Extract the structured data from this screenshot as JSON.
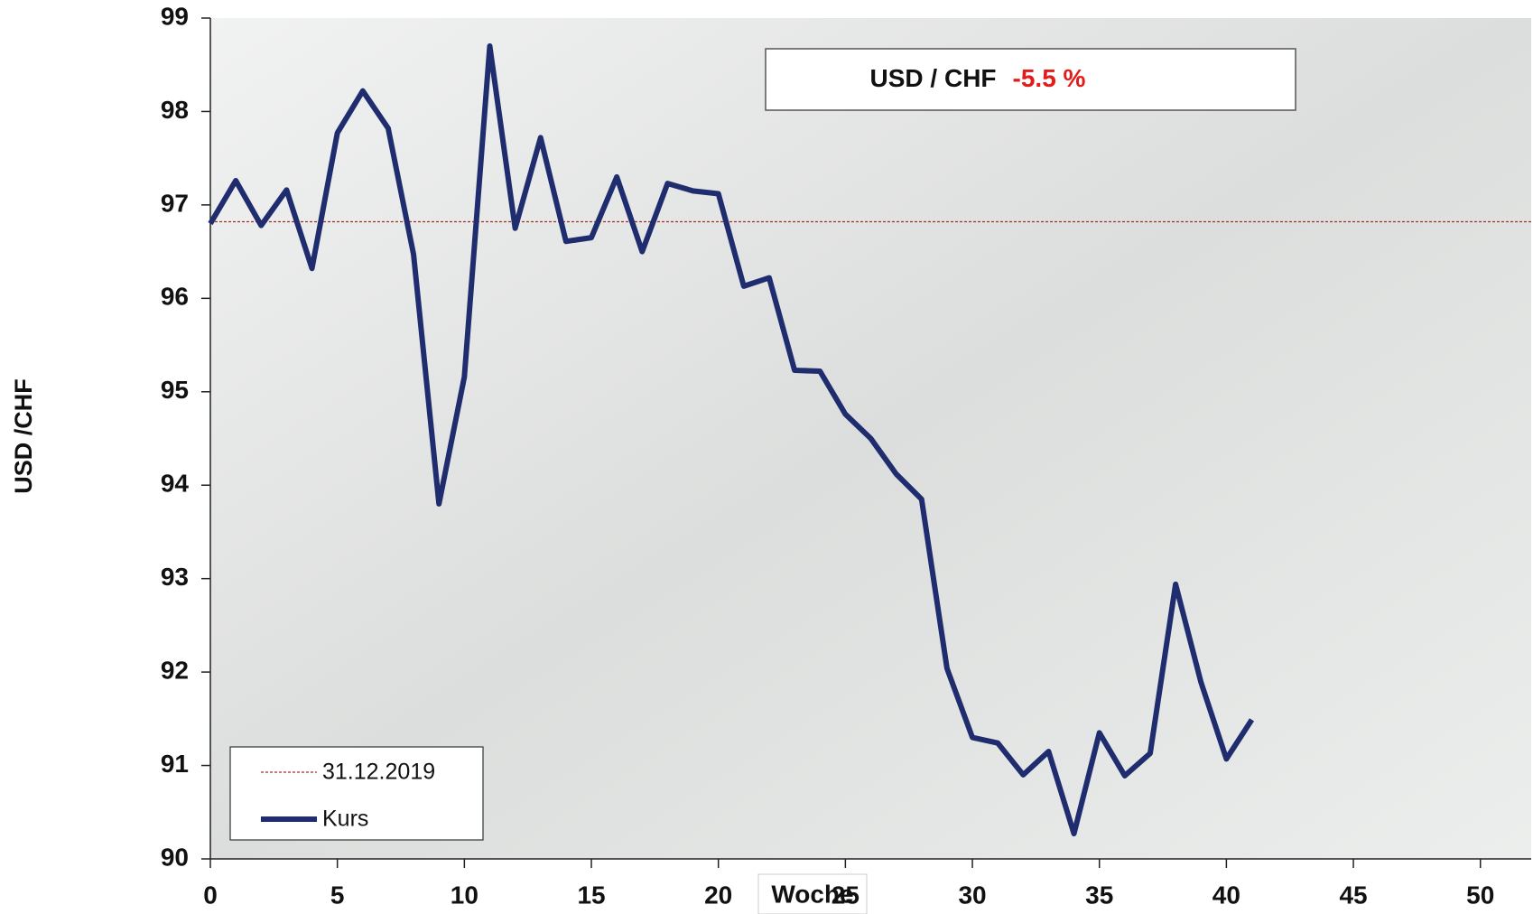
{
  "chart_data": {
    "type": "line",
    "title": "USD / CHF",
    "title_change": "-5.5 %",
    "y_label": "USD /CHF",
    "x_label": "Woche",
    "x": [
      0,
      1,
      2,
      3,
      4,
      5,
      6,
      7,
      8,
      9,
      10,
      11,
      12,
      13,
      14,
      15,
      16,
      17,
      18,
      19,
      20,
      21,
      22,
      23,
      24,
      25,
      26,
      27,
      28,
      29,
      30,
      31,
      32,
      33,
      34,
      35,
      36,
      37,
      38,
      39,
      40,
      41
    ],
    "series": [
      {
        "name": "Kurs",
        "color": "#1f2d6e",
        "values": [
          96.8,
          97.26,
          96.78,
          97.16,
          96.32,
          97.77,
          98.22,
          97.82,
          96.47,
          93.8,
          95.16,
          98.7,
          96.75,
          97.72,
          96.61,
          96.65,
          97.3,
          96.5,
          97.23,
          97.15,
          97.12,
          96.13,
          96.22,
          95.23,
          95.22,
          94.76,
          94.5,
          94.12,
          93.85,
          92.04,
          91.3,
          91.24,
          90.9,
          91.15,
          90.27,
          91.35,
          90.89,
          91.13,
          92.94,
          91.89,
          91.07,
          91.49
        ]
      }
    ],
    "reference_line": {
      "name": "31.12.2019",
      "value": 96.82,
      "color": "#a0302a"
    },
    "xlim": [
      0,
      52
    ],
    "xticks": [
      0,
      5,
      10,
      15,
      20,
      25,
      30,
      35,
      40,
      45,
      50
    ],
    "ylim": [
      90,
      99
    ],
    "yticks": [
      90,
      91,
      92,
      93,
      94,
      95,
      96,
      97,
      98,
      99
    ],
    "legend": "bottom-left"
  }
}
